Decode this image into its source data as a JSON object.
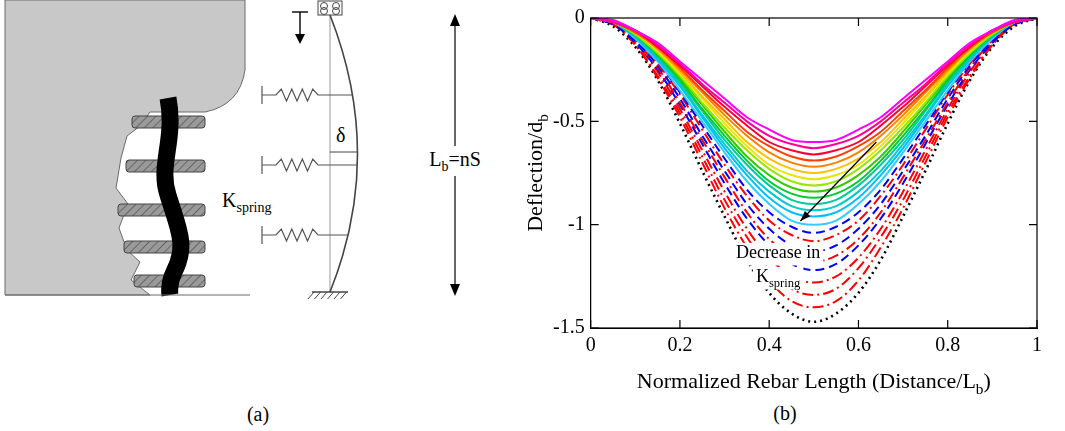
{
  "panel_a": {
    "panel_label": "(a)",
    "spring_label": [
      "K",
      {
        "sub": "spring"
      }
    ],
    "deflection_label": "δ",
    "length_label": [
      "L",
      {
        "sub": "b"
      },
      "=nS"
    ]
  },
  "chart_data": {
    "type": "line",
    "panel_label": "(b)",
    "x_label": [
      "Normalized Rebar Length (Distance/L",
      {
        "sub": "b"
      },
      ")"
    ],
    "y_label": [
      "Deflection/d",
      {
        "sub": "b"
      }
    ],
    "annotation": [
      [
        "Decrease in"
      ],
      [
        "K",
        {
          "sub": "spring"
        }
      ]
    ],
    "x": [
      0,
      0.05,
      0.1,
      0.15,
      0.2,
      0.25,
      0.3,
      0.35,
      0.4,
      0.45,
      0.5,
      0.55,
      0.6,
      0.65,
      0.7,
      0.75,
      0.8,
      0.85,
      0.9,
      0.95,
      1
    ],
    "xlim": [
      0,
      1
    ],
    "xticks": [
      0,
      0.2,
      0.4,
      0.6,
      0.8,
      1
    ],
    "ylim": [
      -1.5,
      0
    ],
    "yticks": [
      -1.5,
      -1,
      -0.5,
      0
    ],
    "grid": false,
    "series": [
      {
        "color": "#ff00ff",
        "line_style": "solid",
        "values": [
          0,
          -0.01,
          -0.06,
          -0.12,
          -0.21,
          -0.3,
          -0.39,
          -0.48,
          -0.54,
          -0.59,
          -0.6,
          -0.59,
          -0.54,
          -0.48,
          -0.39,
          -0.3,
          -0.21,
          -0.12,
          -0.06,
          -0.01,
          0
        ]
      },
      {
        "color": "#ff0099",
        "line_style": "solid",
        "values": [
          0,
          -0.02,
          -0.06,
          -0.13,
          -0.22,
          -0.32,
          -0.41,
          -0.5,
          -0.57,
          -0.61,
          -0.63,
          -0.61,
          -0.57,
          -0.5,
          -0.41,
          -0.32,
          -0.22,
          -0.13,
          -0.06,
          -0.02,
          0
        ]
      },
      {
        "color": "#ff0033",
        "line_style": "solid",
        "values": [
          0,
          -0.02,
          -0.06,
          -0.14,
          -0.23,
          -0.33,
          -0.43,
          -0.52,
          -0.6,
          -0.64,
          -0.66,
          -0.64,
          -0.6,
          -0.52,
          -0.43,
          -0.33,
          -0.23,
          -0.14,
          -0.06,
          -0.02,
          0
        ]
      },
      {
        "color": "#ff4000",
        "line_style": "solid",
        "values": [
          0,
          -0.02,
          -0.07,
          -0.14,
          -0.24,
          -0.35,
          -0.45,
          -0.55,
          -0.62,
          -0.67,
          -0.69,
          -0.67,
          -0.62,
          -0.55,
          -0.45,
          -0.35,
          -0.24,
          -0.14,
          -0.07,
          -0.02,
          0
        ]
      },
      {
        "color": "#ff8000",
        "line_style": "solid",
        "values": [
          0,
          -0.02,
          -0.07,
          -0.15,
          -0.25,
          -0.36,
          -0.47,
          -0.57,
          -0.65,
          -0.7,
          -0.72,
          -0.7,
          -0.65,
          -0.57,
          -0.47,
          -0.36,
          -0.25,
          -0.15,
          -0.07,
          -0.02,
          0
        ]
      },
      {
        "color": "#ffc000",
        "line_style": "solid",
        "values": [
          0,
          -0.02,
          -0.07,
          -0.15,
          -0.26,
          -0.38,
          -0.49,
          -0.6,
          -0.68,
          -0.73,
          -0.75,
          -0.73,
          -0.68,
          -0.6,
          -0.49,
          -0.38,
          -0.26,
          -0.15,
          -0.07,
          -0.02,
          0
        ]
      },
      {
        "color": "#e6e600",
        "line_style": "solid",
        "values": [
          0,
          -0.02,
          -0.07,
          -0.16,
          -0.27,
          -0.39,
          -0.51,
          -0.62,
          -0.71,
          -0.76,
          -0.78,
          -0.76,
          -0.71,
          -0.62,
          -0.51,
          -0.39,
          -0.27,
          -0.16,
          -0.07,
          -0.02,
          0
        ]
      },
      {
        "color": "#99e600",
        "line_style": "solid",
        "values": [
          0,
          -0.02,
          -0.08,
          -0.17,
          -0.28,
          -0.41,
          -0.53,
          -0.64,
          -0.73,
          -0.79,
          -0.81,
          -0.79,
          -0.73,
          -0.64,
          -0.53,
          -0.41,
          -0.28,
          -0.17,
          -0.08,
          -0.02,
          0
        ]
      },
      {
        "color": "#33cc00",
        "line_style": "solid",
        "values": [
          0,
          -0.02,
          -0.08,
          -0.17,
          -0.29,
          -0.42,
          -0.55,
          -0.67,
          -0.76,
          -0.82,
          -0.84,
          -0.82,
          -0.76,
          -0.67,
          -0.55,
          -0.42,
          -0.29,
          -0.17,
          -0.08,
          -0.02,
          0
        ]
      },
      {
        "color": "#00cc33",
        "line_style": "solid",
        "values": [
          0,
          -0.02,
          -0.08,
          -0.18,
          -0.3,
          -0.44,
          -0.57,
          -0.69,
          -0.79,
          -0.85,
          -0.87,
          -0.85,
          -0.79,
          -0.69,
          -0.57,
          -0.44,
          -0.3,
          -0.18,
          -0.08,
          -0.02,
          0
        ]
      },
      {
        "color": "#00cc99",
        "line_style": "solid",
        "values": [
          0,
          -0.02,
          -0.09,
          -0.19,
          -0.31,
          -0.45,
          -0.59,
          -0.71,
          -0.81,
          -0.88,
          -0.9,
          -0.88,
          -0.81,
          -0.71,
          -0.59,
          -0.45,
          -0.31,
          -0.19,
          -0.09,
          -0.02,
          0
        ]
      },
      {
        "color": "#00cccc",
        "line_style": "solid",
        "values": [
          0,
          -0.02,
          -0.09,
          -0.19,
          -0.32,
          -0.47,
          -0.61,
          -0.74,
          -0.84,
          -0.91,
          -0.93,
          -0.91,
          -0.84,
          -0.74,
          -0.61,
          -0.47,
          -0.32,
          -0.19,
          -0.09,
          -0.02,
          0
        ]
      },
      {
        "color": "#00bfff",
        "line_style": "solid",
        "values": [
          0,
          -0.02,
          -0.09,
          -0.2,
          -0.33,
          -0.48,
          -0.63,
          -0.76,
          -0.87,
          -0.94,
          -0.96,
          -0.94,
          -0.87,
          -0.76,
          -0.63,
          -0.48,
          -0.33,
          -0.2,
          -0.09,
          -0.02,
          0
        ]
      },
      {
        "color": "#33ccff",
        "line_style": "solid",
        "values": [
          0,
          -0.02,
          -0.1,
          -0.21,
          -0.35,
          -0.5,
          -0.65,
          -0.79,
          -0.9,
          -0.98,
          -1,
          -0.98,
          -0.9,
          -0.79,
          -0.65,
          -0.5,
          -0.35,
          -0.21,
          -0.1,
          -0.02,
          0
        ]
      },
      {
        "color": "#0000ff",
        "line_style": "dashed",
        "values": [
          0,
          -0.03,
          -0.1,
          -0.21,
          -0.36,
          -0.52,
          -0.68,
          -0.83,
          -0.94,
          -1.01,
          -1.04,
          -1.01,
          -0.94,
          -0.83,
          -0.68,
          -0.52,
          -0.36,
          -0.21,
          -0.1,
          -0.03,
          0
        ]
      },
      {
        "color": "#ff0000",
        "line_style": "dashdot",
        "values": [
          0,
          -0.03,
          -0.1,
          -0.22,
          -0.37,
          -0.54,
          -0.71,
          -0.86,
          -0.98,
          -1.05,
          -1.08,
          -1.05,
          -0.98,
          -0.86,
          -0.71,
          -0.54,
          -0.37,
          -0.22,
          -0.1,
          -0.03,
          0
        ]
      },
      {
        "color": "#0000ff",
        "line_style": "dashed",
        "values": [
          0,
          -0.03,
          -0.11,
          -0.23,
          -0.39,
          -0.57,
          -0.74,
          -0.9,
          -1.02,
          -1.1,
          -1.13,
          -1.1,
          -1.02,
          -0.9,
          -0.74,
          -0.57,
          -0.39,
          -0.23,
          -0.11,
          -0.03,
          0
        ]
      },
      {
        "color": "#ff0000",
        "line_style": "dashdot",
        "values": [
          0,
          -0.03,
          -0.11,
          -0.24,
          -0.41,
          -0.59,
          -0.77,
          -0.94,
          -1.07,
          -1.15,
          -1.18,
          -1.15,
          -1.07,
          -0.94,
          -0.77,
          -0.59,
          -0.41,
          -0.24,
          -0.11,
          -0.03,
          0
        ]
      },
      {
        "color": "#0000ff",
        "line_style": "dashed",
        "values": [
          0,
          -0.03,
          -0.12,
          -0.25,
          -0.42,
          -0.61,
          -0.8,
          -0.97,
          -1.1,
          -1.19,
          -1.22,
          -1.19,
          -1.1,
          -0.97,
          -0.8,
          -0.61,
          -0.42,
          -0.25,
          -0.12,
          -0.03,
          0
        ]
      },
      {
        "color": "#ff0000",
        "line_style": "dashdot",
        "values": [
          0,
          -0.03,
          -0.12,
          -0.26,
          -0.44,
          -0.64,
          -0.84,
          -1.02,
          -1.16,
          -1.25,
          -1.28,
          -1.25,
          -1.16,
          -1.02,
          -0.84,
          -0.64,
          -0.44,
          -0.26,
          -0.12,
          -0.03,
          0
        ]
      },
      {
        "color": "#ff0000",
        "line_style": "dashdot",
        "values": [
          0,
          -0.03,
          -0.13,
          -0.28,
          -0.46,
          -0.67,
          -0.88,
          -1.06,
          -1.21,
          -1.31,
          -1.34,
          -1.31,
          -1.21,
          -1.06,
          -0.88,
          -0.67,
          -0.46,
          -0.28,
          -0.13,
          -0.03,
          0
        ]
      },
      {
        "color": "#ff0000",
        "line_style": "dashdot",
        "values": [
          0,
          -0.03,
          -0.13,
          -0.29,
          -0.48,
          -0.7,
          -0.92,
          -1.11,
          -1.27,
          -1.37,
          -1.4,
          -1.37,
          -1.27,
          -1.11,
          -0.92,
          -0.7,
          -0.48,
          -0.29,
          -0.13,
          -0.03,
          0
        ]
      },
      {
        "color": "#000000",
        "line_style": "dotted",
        "values": [
          0,
          -0.04,
          -0.14,
          -0.3,
          -0.51,
          -0.74,
          -0.96,
          -1.17,
          -1.33,
          -1.43,
          -1.47,
          -1.43,
          -1.33,
          -1.17,
          -0.96,
          -0.74,
          -0.51,
          -0.3,
          -0.14,
          -0.04,
          0
        ]
      }
    ]
  }
}
